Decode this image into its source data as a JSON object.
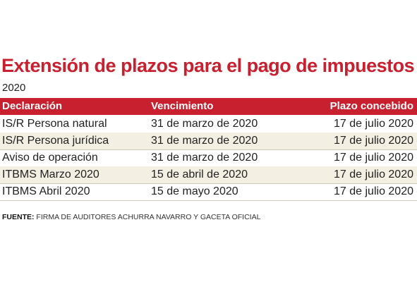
{
  "header": {
    "title": "Extensión de plazos para el pago de impuestos",
    "subtitle": "2020"
  },
  "table": {
    "columns": [
      "Declaración",
      "Vencimiento",
      "Plazo concebido"
    ],
    "rows": [
      [
        "IS/R Persona natural",
        "31 de marzo de 2020",
        "17 de julio 2020"
      ],
      [
        "IS/R Persona jurídica",
        "31 de marzo de 2020",
        "17 de julio 2020"
      ],
      [
        "Aviso de operación",
        "31 de marzo de 2020",
        "17 de julio 2020"
      ],
      [
        "ITBMS Marzo 2020",
        "15 de abril de 2020",
        "17 de julio 2020"
      ],
      [
        "ITBMS Abril 2020",
        "15 de mayo 2020",
        "17 de julio 2020"
      ]
    ]
  },
  "footer": {
    "label": "FUENTE:",
    "text": "FIRMA DE AUDITORES ACHURRA NAVARRO Y GACETA OFICIAL"
  }
}
